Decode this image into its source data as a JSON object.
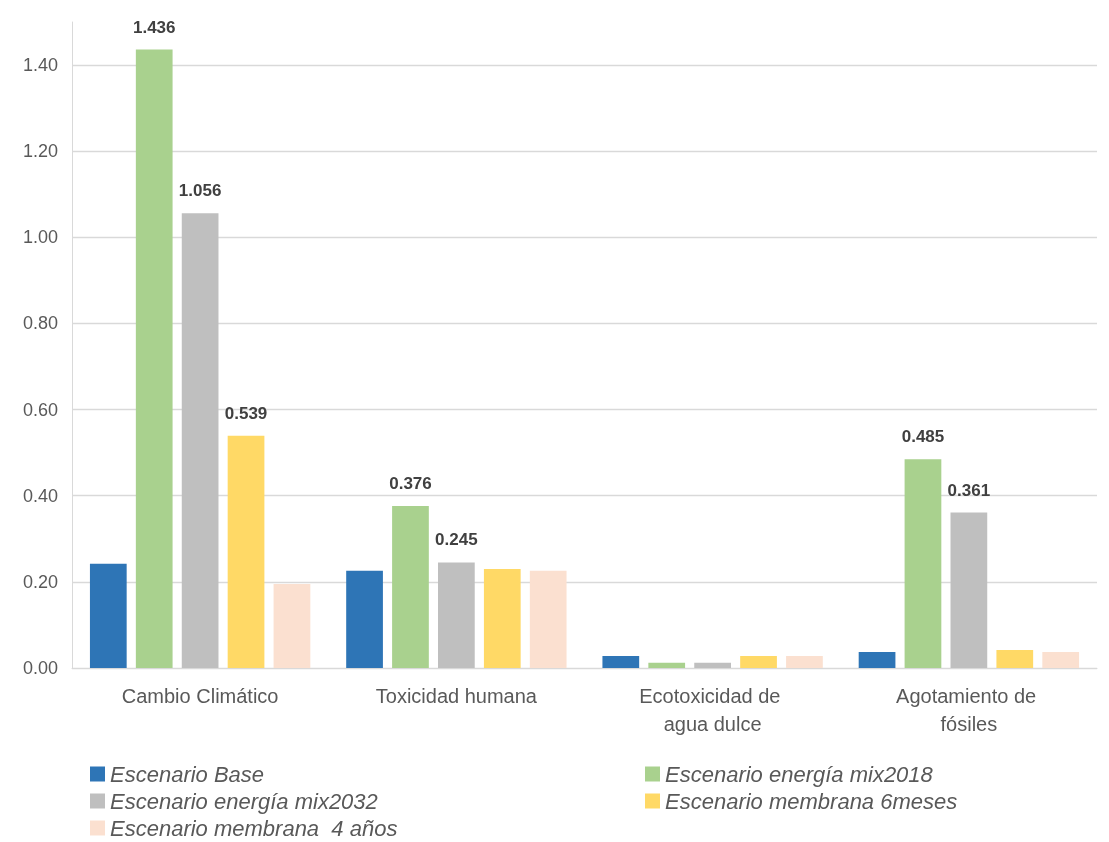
{
  "chart_data": {
    "type": "bar",
    "categories": [
      "Cambio Climático",
      "Toxicidad humana",
      "Ecotoxicidad de agua dulce",
      "Agotamiento de fósiles"
    ],
    "series": [
      {
        "name": "Escenario Base",
        "color": "#2e75b6",
        "values": [
          0.242,
          0.226,
          0.028,
          0.037
        ]
      },
      {
        "name": "Escenario energía mix2018",
        "color": "#a9d18e",
        "values": [
          1.436,
          0.376,
          0.012,
          0.485
        ],
        "value_labels": [
          "1.436",
          "0.376",
          null,
          "0.485"
        ]
      },
      {
        "name": "Escenario energía mix2032",
        "color": "#bfbfbf",
        "values": [
          1.056,
          0.245,
          0.012,
          0.361
        ],
        "value_labels": [
          "1.056",
          "0.245",
          null,
          "0.361"
        ]
      },
      {
        "name": "Escenario membrana 6meses",
        "color": "#ffd966",
        "values": [
          0.539,
          0.23,
          0.028,
          0.042
        ],
        "value_labels": [
          "0.539",
          null,
          null,
          null
        ]
      },
      {
        "name": "Escenario membrana  4 años",
        "color": "#fbe0d0",
        "values": [
          0.195,
          0.226,
          0.028,
          0.037
        ]
      }
    ],
    "ylim": [
      0,
      1.5
    ],
    "yticks": [
      {
        "value": 0,
        "label": "0.00"
      },
      {
        "value": 0.2,
        "label": "0.20"
      },
      {
        "value": 0.4,
        "label": "0.40"
      },
      {
        "value": 0.6,
        "label": "0.60"
      },
      {
        "value": 0.8,
        "label": "0.80"
      },
      {
        "value": 1,
        "label": "1.00"
      },
      {
        "value": 1.2,
        "label": "1.20"
      },
      {
        "value": 1.4,
        "label": "1.40"
      }
    ],
    "grid": "y",
    "legend": "bottom"
  }
}
